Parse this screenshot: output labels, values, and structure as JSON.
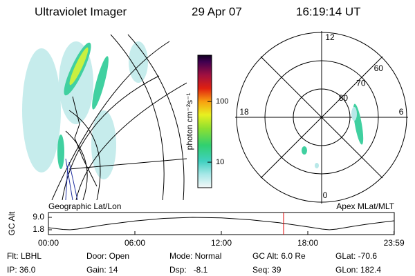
{
  "header": {
    "title": "Ultraviolet Imager",
    "date": "29 Apr 07",
    "time": "16:19:14 UT"
  },
  "colorbar": {
    "label": "photon cm⁻²s⁻¹",
    "clim": [
      3.8,
      580
    ],
    "log": true,
    "ticks": [
      10,
      100
    ]
  },
  "polar": {
    "hour_labels": [
      "12",
      "18",
      "6",
      "0"
    ],
    "rings": [
      60,
      70,
      80
    ]
  },
  "timeline": {
    "left_label": "Geographic Lat/Lon",
    "right_label": "Apex MLat/MLT",
    "y_label": "GC Alt",
    "ylim": [
      -1.0,
      11.8
    ],
    "yticks": [
      {
        "value": 9,
        "label": "9.0"
      },
      {
        "value": 1.8,
        "label": "1.8"
      }
    ],
    "xlim": [
      0,
      24
    ],
    "xticks": [
      {
        "value": 0,
        "label": "00:00"
      },
      {
        "value": 6,
        "label": "06:00"
      },
      {
        "value": 12,
        "label": "12:00"
      },
      {
        "value": 18,
        "label": "18:00"
      },
      {
        "value": 23.983,
        "label": "23:59"
      }
    ],
    "x": [
      0,
      1,
      1.5,
      2,
      3,
      4,
      6,
      8,
      10,
      12,
      14,
      16,
      18,
      19,
      19.5,
      20,
      21,
      22,
      23,
      23.983
    ],
    "values": [
      3.0,
      2.0,
      1.8,
      2.2,
      3.5,
      4.8,
      6.9,
      8.4,
      9.0,
      8.7,
      7.6,
      5.9,
      3.5,
      2.2,
      1.8,
      2.2,
      3.6,
      4.9,
      6.0,
      7.0
    ],
    "marker": 16.32,
    "marker_color": "#e00000"
  },
  "footer": [
    [
      "Flt: LBHL",
      "IP: 36.0"
    ],
    [
      "Door: Open",
      "Gain: 14"
    ],
    [
      "Mode: Normal",
      "Dsp:   -8.1"
    ],
    [
      "GC Alt: 6.0 Re",
      "Seq: 39"
    ],
    [
      "GLat: -70.6",
      "GLon: 182.4"
    ]
  ]
}
